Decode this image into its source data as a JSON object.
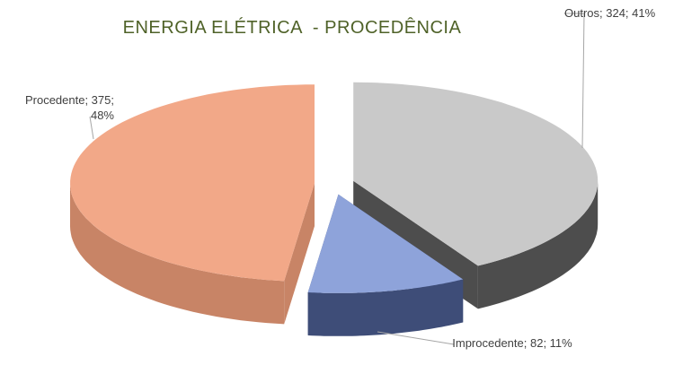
{
  "chart_data": {
    "type": "pie3d",
    "title": "ENERGIA ELÉTRICA  - PROCEDÊNCIA",
    "values": [
      324,
      82,
      375
    ],
    "value_labels": [
      "Outros; 324; 41%",
      "Improcedente; 82; 11%",
      "Procedente; 375; 48%"
    ],
    "colors": [
      "#c9c9c9",
      "#8ea3da",
      "#f2a888"
    ],
    "side_colors": [
      "#4d4d4d",
      "#3e4d78",
      "#c88466"
    ]
  }
}
